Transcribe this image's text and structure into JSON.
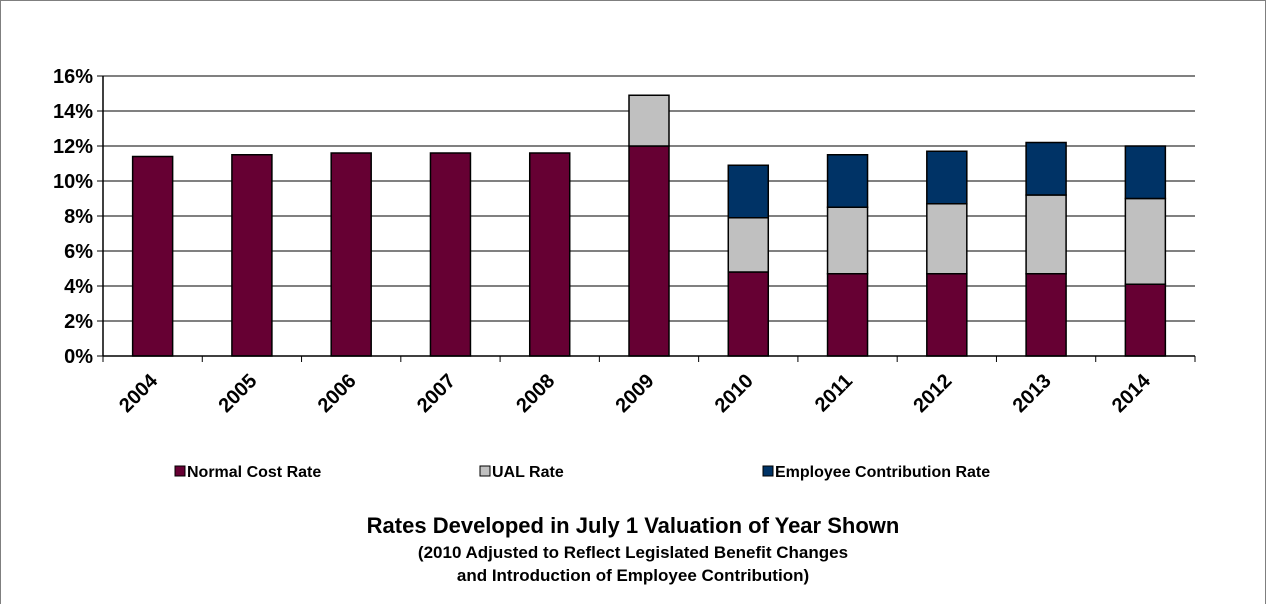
{
  "chart_data": {
    "type": "bar",
    "stacked": true,
    "categories": [
      "2004",
      "2005",
      "2006",
      "2007",
      "2008",
      "2009",
      "2010",
      "2011",
      "2012",
      "2013",
      "2014"
    ],
    "series": [
      {
        "name": "Normal Cost Rate",
        "color": "#660033",
        "values": [
          11.4,
          11.5,
          11.6,
          11.6,
          11.6,
          12.0,
          4.8,
          4.7,
          4.7,
          4.7,
          4.1
        ]
      },
      {
        "name": "UAL Rate",
        "color": "#c0c0c0",
        "values": [
          0,
          0,
          0,
          0,
          0,
          2.9,
          3.1,
          3.8,
          4.0,
          4.5,
          4.9
        ]
      },
      {
        "name": "Employee Contribution Rate",
        "color": "#003366",
        "values": [
          0,
          0,
          0,
          0,
          0,
          0,
          3.0,
          3.0,
          3.0,
          3.0,
          3.0
        ]
      }
    ],
    "yticks": [
      "0%",
      "2%",
      "4%",
      "6%",
      "8%",
      "10%",
      "12%",
      "14%",
      "16%"
    ],
    "ylim": [
      0,
      16
    ],
    "grid": true,
    "legend_position": "bottom",
    "title": "Rates Developed in July 1 Valuation of Year Shown",
    "subtitle_line1": "(2010 Adjusted to Reflect Legislated Benefit Changes",
    "subtitle_line2": "and Introduction of Employee Contribution)"
  }
}
